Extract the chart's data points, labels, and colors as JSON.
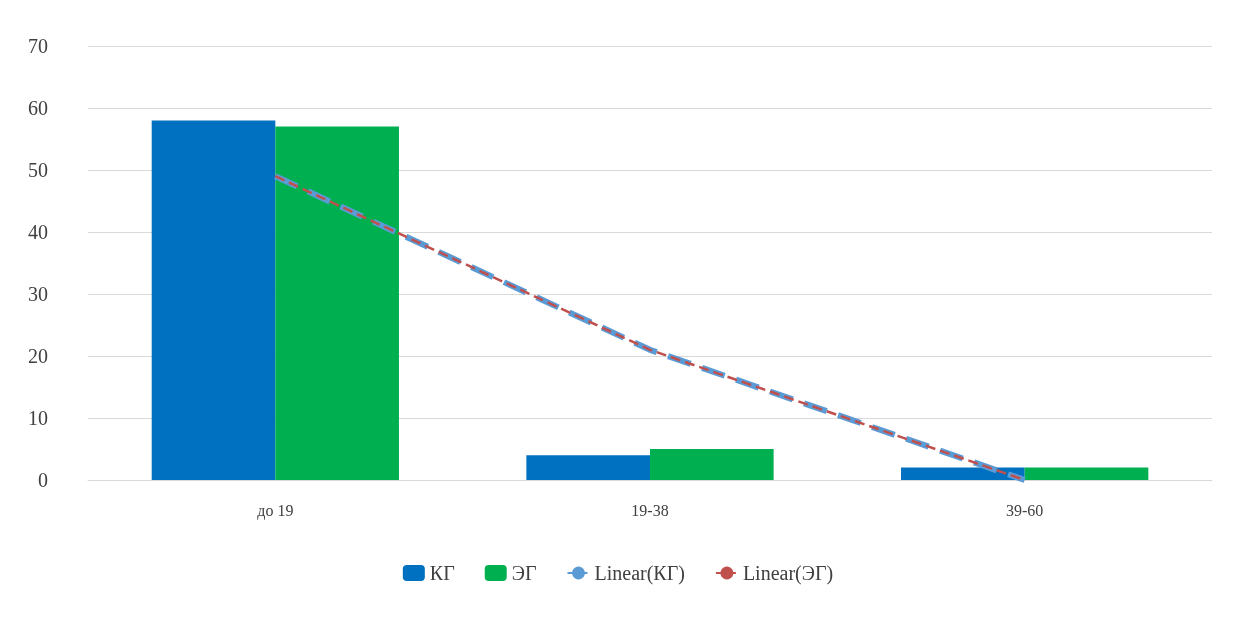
{
  "chart_data": {
    "type": "bar",
    "categories": [
      "до 19",
      "19-38",
      "39-60"
    ],
    "series": [
      {
        "name": "КГ",
        "color": "#0070c0",
        "values": [
          58,
          4,
          2
        ]
      },
      {
        "name": "ЭГ",
        "color": "#00b050",
        "values": [
          57,
          5,
          2
        ]
      },
      {
        "name": "Linear(КГ)",
        "type": "line",
        "color": "#5b9bd5",
        "line_style": "dashed",
        "values": [
          49,
          21,
          0
        ]
      },
      {
        "name": "Linear(ЭГ)",
        "type": "line",
        "color": "#c0504d",
        "line_style": "dashed",
        "values": [
          49,
          21,
          0
        ]
      }
    ],
    "ylim": [
      0,
      70
    ],
    "yticks": [
      0,
      10,
      20,
      30,
      40,
      50,
      60,
      70
    ],
    "grid": "y",
    "legend": "bottom",
    "marker": "none"
  }
}
